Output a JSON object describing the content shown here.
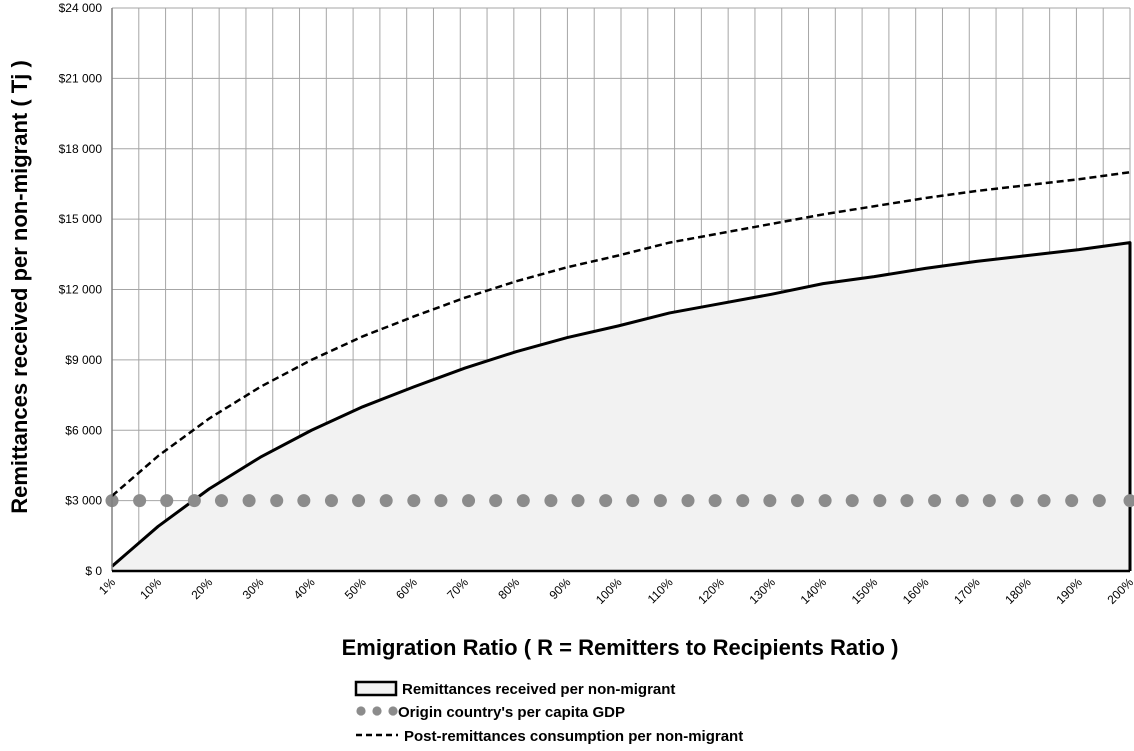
{
  "chart_data": {
    "type": "line",
    "xlabel": "Emigration Ratio ( R = Remitters to Recipients Ratio )",
    "ylabel": "Remittances received per non-migrant ( Tj )",
    "ylim": [
      0,
      24000
    ],
    "y_ticks": [
      "$ 0",
      "$3 000",
      "$6 000",
      "$9 000",
      "$12 000",
      "$15 000",
      "$18 000",
      "$21 000",
      "$24 000"
    ],
    "x_range": [
      1,
      200
    ],
    "x_tick_values": [
      1,
      10,
      20,
      30,
      40,
      50,
      60,
      70,
      80,
      90,
      100,
      110,
      120,
      130,
      140,
      150,
      160,
      170,
      180,
      190,
      200
    ],
    "x_ticks": [
      "1%",
      "10%",
      "20%",
      "30%",
      "40%",
      "50%",
      "60%",
      "70%",
      "80%",
      "90%",
      "100%",
      "110%",
      "120%",
      "130%",
      "140%",
      "150%",
      "160%",
      "170%",
      "180%",
      "190%",
      "200%"
    ],
    "grid": true,
    "legend_position": "bottom",
    "series": [
      {
        "name": "Remittances received per non-migrant",
        "style": "solid-area",
        "color": "#000000",
        "fill": "#f2f2f2",
        "x": [
          1,
          10,
          20,
          30,
          40,
          50,
          60,
          70,
          80,
          90,
          100,
          110,
          120,
          130,
          140,
          150,
          160,
          170,
          180,
          190,
          200
        ],
        "values": [
          200,
          1900,
          3500,
          4850,
          6000,
          7000,
          7850,
          8650,
          9350,
          9950,
          10450,
          11000,
          11400,
          11800,
          12250,
          12550,
          12900,
          13200,
          13450,
          13700,
          14000
        ]
      },
      {
        "name": "Origin country's per capita GDP",
        "style": "dots",
        "color": "#8c8c8c",
        "x": [
          1,
          6.4,
          11.7,
          17.1,
          22.4,
          27.8,
          33.2,
          38.5,
          43.9,
          49.2,
          54.6,
          60,
          65.3,
          70.7,
          76,
          81.4,
          86.8,
          92.1,
          97.5,
          102.8,
          108.2,
          113.6,
          118.9,
          124.3,
          129.6,
          135,
          140.4,
          145.7,
          151.1,
          156.4,
          161.8,
          167.2,
          172.5,
          177.9,
          183.2,
          188.6,
          194,
          200
        ],
        "values": [
          3000,
          3000,
          3000,
          3000,
          3000,
          3000,
          3000,
          3000,
          3000,
          3000,
          3000,
          3000,
          3000,
          3000,
          3000,
          3000,
          3000,
          3000,
          3000,
          3000,
          3000,
          3000,
          3000,
          3000,
          3000,
          3000,
          3000,
          3000,
          3000,
          3000,
          3000,
          3000,
          3000,
          3000,
          3000,
          3000,
          3000,
          3000
        ]
      },
      {
        "name": "Post-remittances consumption per non-migrant",
        "style": "dashed",
        "color": "#000000",
        "x": [
          1,
          10,
          20,
          30,
          40,
          50,
          60,
          70,
          80,
          90,
          100,
          110,
          120,
          130,
          140,
          150,
          160,
          170,
          180,
          190,
          200
        ],
        "values": [
          3200,
          4900,
          6500,
          7850,
          9000,
          10000,
          10850,
          11650,
          12350,
          12950,
          13450,
          14000,
          14400,
          14800,
          15200,
          15550,
          15900,
          16200,
          16450,
          16700,
          17000
        ]
      }
    ]
  }
}
